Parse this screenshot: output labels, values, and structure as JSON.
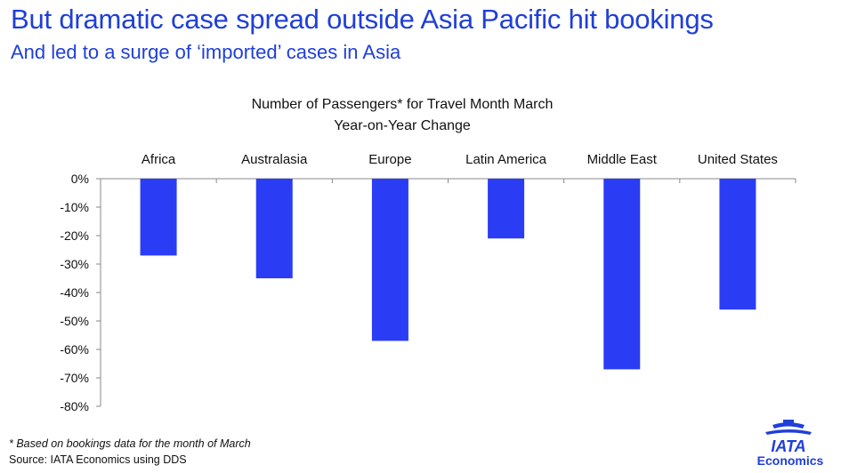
{
  "header": {
    "title": "But dramatic case spread outside Asia Pacific hit bookings",
    "subtitle": "And led to a surge of ‘imported’ cases in Asia"
  },
  "chart_data": {
    "type": "bar",
    "title": "Number of Passengers*  for  Travel Month March",
    "subtitle": "Year-on-Year Change",
    "categories": [
      "Africa",
      "Australasia",
      "Europe",
      "Latin America",
      "Middle East",
      "United States"
    ],
    "values": [
      -27,
      -35,
      -57,
      -21,
      -67,
      -46
    ],
    "unit": "%",
    "ylim": [
      -80,
      0
    ],
    "yticks": [
      "0%",
      "-10%",
      "-20%",
      "-30%",
      "-40%",
      "-50%",
      "-60%",
      "-70%",
      "-80%"
    ],
    "category_labels_position": "top",
    "grid": false,
    "bar_color": "#2a3df5"
  },
  "footer": {
    "footnote": "* Based on bookings data for the  month of March",
    "source": "Source: IATA Economics using DDS"
  },
  "logo": {
    "name": "iata-logo",
    "brand": "IATA",
    "caption": "Economics",
    "color": "#1f3fd8"
  }
}
